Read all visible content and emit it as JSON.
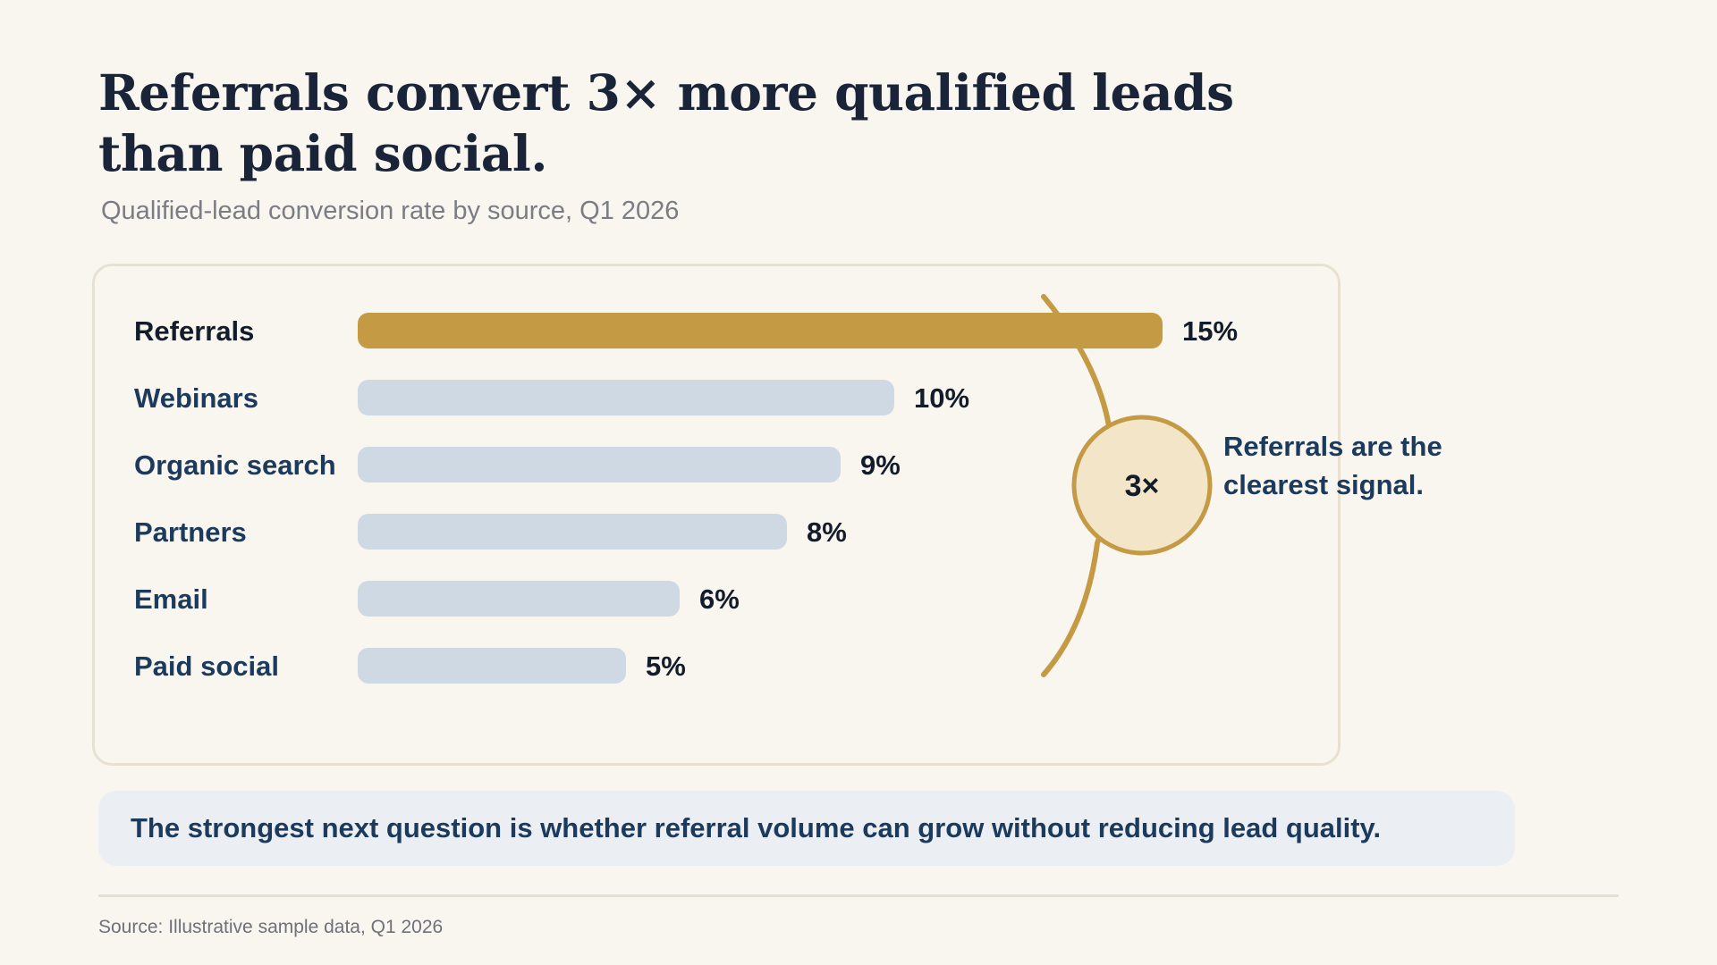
{
  "title": "Referrals convert 3× more qualified leads than paid social.",
  "subtitle": "Qualified-lead conversion rate by source, Q1 2026",
  "chart_data": {
    "type": "bar",
    "orientation": "horizontal",
    "categories": [
      "Referrals",
      "Webinars",
      "Organic search",
      "Partners",
      "Email",
      "Paid social"
    ],
    "values": [
      15,
      10,
      9,
      8,
      6,
      5
    ],
    "value_labels": [
      "15%",
      "10%",
      "9%",
      "8%",
      "6%",
      "5%"
    ],
    "unit": "%",
    "highlight_category": "Referrals",
    "xlim": [
      0,
      15
    ],
    "grid": false,
    "colors": {
      "highlight": "#c49a45",
      "default": "#cfd9e3"
    }
  },
  "callout": {
    "value": "3×",
    "text": "Referrals are the clearest signal.",
    "color": "#c49a45",
    "fill": "#f3e6c8"
  },
  "takeaway": "The strongest next question is whether referral volume can grow without reducing lead quality.",
  "source": "Source: Illustrative sample data, Q1 2026"
}
